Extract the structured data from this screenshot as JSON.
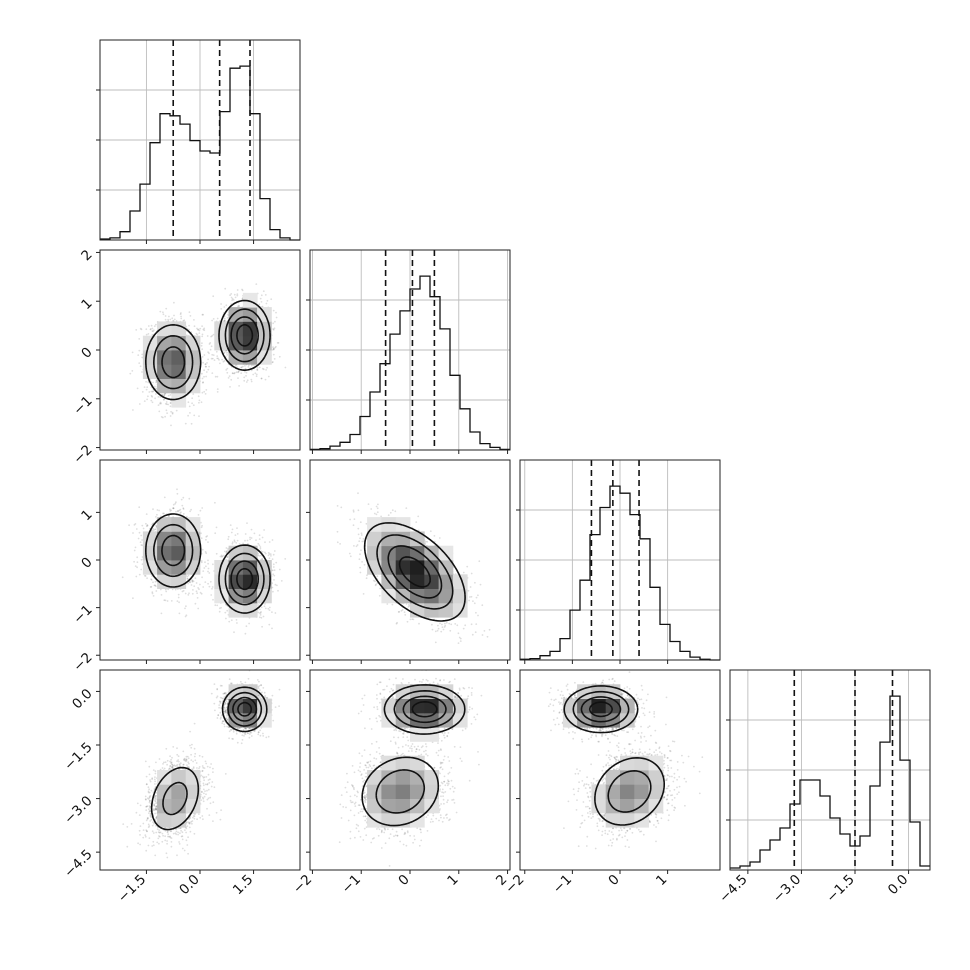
{
  "chart_data": {
    "type": "corner",
    "grid": true,
    "parameters": [
      {
        "range": [
          -2.8,
          2.8
        ],
        "ticks": [
          -1.5,
          0.0,
          1.5
        ],
        "tick_labels": [
          "−1.5",
          "0.0",
          "1.5"
        ],
        "quantiles": [
          -0.75,
          0.55,
          1.4
        ]
      },
      {
        "range": [
          -2.05,
          2.05
        ],
        "ticks": [
          -2,
          -1,
          0,
          1,
          2
        ],
        "tick_labels": [
          "−2",
          "−1",
          "0",
          "1",
          "2"
        ],
        "quantiles": [
          -0.5,
          0.05,
          0.5
        ]
      },
      {
        "range": [
          -2.1,
          2.1
        ],
        "ticks": [
          -2,
          -1,
          0,
          1
        ],
        "tick_labels": [
          "−2",
          "−1",
          "0",
          "1"
        ],
        "quantiles": [
          -0.6,
          -0.15,
          0.4
        ]
      },
      {
        "range": [
          -5.0,
          0.6
        ],
        "ticks": [
          -4.5,
          -3.0,
          -1.5,
          0.0
        ],
        "tick_labels": [
          "−4.5",
          "−3.0",
          "−1.5",
          "0.0"
        ],
        "quantiles": [
          -3.2,
          -1.5,
          -0.45
        ]
      }
    ],
    "histograms": [
      {
        "param": 0,
        "bin_edges": [
          -2.8,
          -2.52,
          -2.24,
          -1.96,
          -1.68,
          -1.4,
          -1.12,
          -0.84,
          -0.56,
          -0.28,
          0,
          0.28,
          0.56,
          0.84,
          1.12,
          1.4,
          1.68,
          1.96,
          2.24,
          2.52,
          2.8
        ],
        "counts": [
          0.5,
          1,
          4,
          14,
          27,
          47,
          61,
          60,
          56,
          48,
          43,
          42,
          62,
          83,
          84,
          61,
          20,
          5,
          1,
          0
        ]
      },
      {
        "param": 1,
        "bin_edges": [
          -2.05,
          -1.845,
          -1.64,
          -1.435,
          -1.23,
          -1.025,
          -0.82,
          -0.615,
          -0.41,
          -0.205,
          0,
          0.205,
          0.41,
          0.615,
          0.82,
          1.025,
          1.23,
          1.435,
          1.64,
          1.845,
          2.05
        ],
        "counts": [
          0.5,
          1,
          3,
          6,
          12,
          26,
          45,
          67,
          90,
          108,
          125,
          135,
          119,
          94,
          58,
          32,
          14,
          5,
          2,
          0.5
        ]
      },
      {
        "param": 2,
        "bin_edges": [
          -2.1,
          -1.89,
          -1.68,
          -1.47,
          -1.26,
          -1.05,
          -0.84,
          -0.63,
          -0.42,
          -0.21,
          0,
          0.21,
          0.42,
          0.63,
          0.84,
          1.05,
          1.26,
          1.47,
          1.68,
          1.89,
          2.1
        ],
        "counts": [
          0.5,
          1,
          3,
          6,
          15,
          35,
          56,
          88,
          107,
          122,
          117,
          102,
          85,
          51,
          25,
          13,
          6,
          2,
          0.5,
          0
        ]
      },
      {
        "param": 3,
        "bin_edges": [
          -5.0,
          -4.72,
          -4.44,
          -4.16,
          -3.88,
          -3.6,
          -3.32,
          -3.04,
          -2.76,
          -2.48,
          -2.2,
          -1.92,
          -1.64,
          -1.36,
          -1.08,
          -0.8,
          -0.52,
          -0.24,
          0.04,
          0.32,
          0.6
        ],
        "counts": [
          1,
          2,
          4,
          10,
          15,
          21,
          33,
          45,
          45,
          37,
          26,
          18,
          12,
          17,
          42,
          64,
          87,
          55,
          24,
          2
        ]
      }
    ],
    "scatter_panels": [
      {
        "x_param": 0,
        "y_param": 1,
        "clusters": [
          {
            "mean": [
              -0.75,
              -0.25
            ],
            "cov": [
              [
                0.16,
                0
              ],
              [
                0,
                0.16
              ]
            ]
          },
          {
            "mean": [
              1.25,
              0.3
            ],
            "cov": [
              [
                0.12,
                0
              ],
              [
                0,
                0.12
              ]
            ]
          }
        ]
      },
      {
        "x_param": 0,
        "y_param": 2,
        "clusters": [
          {
            "mean": [
              -0.75,
              0.2
            ],
            "cov": [
              [
                0.16,
                0
              ],
              [
                0,
                0.16
              ]
            ]
          },
          {
            "mean": [
              1.25,
              -0.4
            ],
            "cov": [
              [
                0.12,
                0
              ],
              [
                0,
                0.12
              ]
            ]
          }
        ]
      },
      {
        "x_param": 1,
        "y_param": 2,
        "clusters": [
          {
            "mean": [
              0.1,
              -0.25
            ],
            "cov": [
              [
                0.25,
                -0.13
              ],
              [
                -0.13,
                0.25
              ]
            ]
          }
        ]
      },
      {
        "x_param": 0,
        "y_param": 3,
        "clusters": [
          {
            "mean": [
              -0.7,
              -3.0
            ],
            "cov": [
              [
                0.17,
                0.07
              ],
              [
                0.07,
                0.3
              ]
            ]
          },
          {
            "mean": [
              1.25,
              -0.5
            ],
            "cov": [
              [
                0.09,
                0
              ],
              [
                0,
                0.09
              ]
            ]
          }
        ]
      },
      {
        "x_param": 1,
        "y_param": 3,
        "clusters": [
          {
            "mean": [
              0.3,
              -0.5
            ],
            "cov": [
              [
                0.16,
                0
              ],
              [
                0,
                0.11
              ]
            ]
          },
          {
            "mean": [
              -0.2,
              -2.8
            ],
            "cov": [
              [
                0.2,
                0.04
              ],
              [
                0.04,
                0.3
              ]
            ]
          }
        ]
      },
      {
        "x_param": 2,
        "y_param": 3,
        "clusters": [
          {
            "mean": [
              -0.4,
              -0.5
            ],
            "cov": [
              [
                0.14,
                0
              ],
              [
                0,
                0.1
              ]
            ]
          },
          {
            "mean": [
              0.2,
              -2.8
            ],
            "cov": [
              [
                0.18,
                0.05
              ],
              [
                0.05,
                0.3
              ]
            ]
          }
        ]
      }
    ]
  }
}
